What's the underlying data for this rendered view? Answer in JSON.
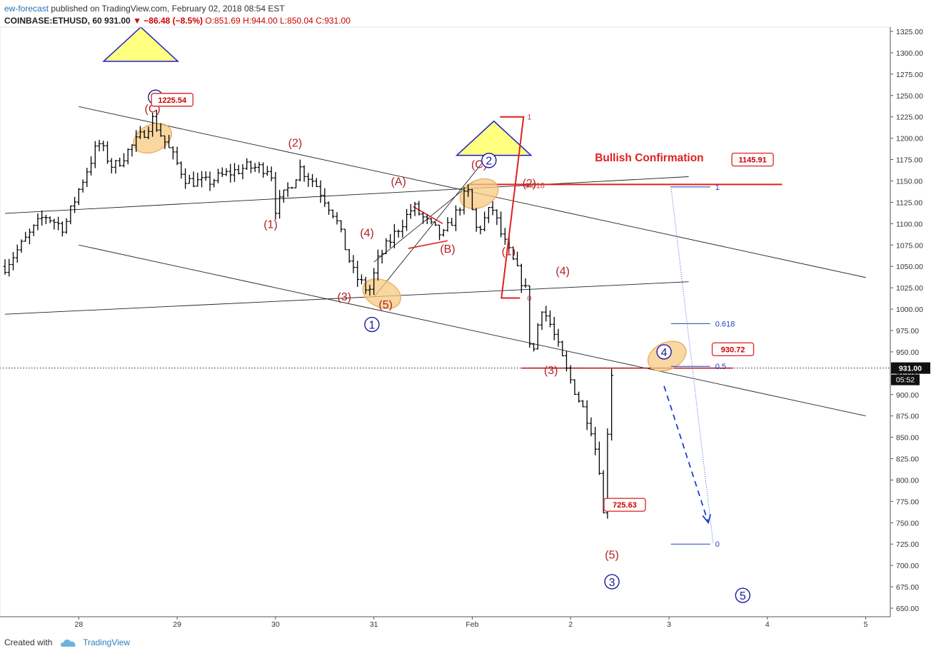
{
  "header": {
    "user": "ew-forecast",
    "published": "published on TradingView.com, February 02, 2018 08:54 EST",
    "symbol": "COINBASE:ETHUSD, 60",
    "last": "931.00",
    "change": "▼ −86.48 (−8.5%)",
    "o_label": "O:",
    "o": "851.69",
    "h_label": "H:",
    "h": "944.00",
    "l_label": "L:",
    "l": "850.04",
    "c_label": "C:",
    "c": "931.00"
  },
  "footer": {
    "created_with": "Created with",
    "brand": "TradingView"
  },
  "colors": {
    "wave_red": "#b22222",
    "wave_blue": "#1a1aa0",
    "fib_blue": "#1f3fbf",
    "ellipse_fill": "#f6c982",
    "ellipse_stroke": "#e8a85a",
    "triangle_fill": "#ffff80",
    "triangle_stroke": "#1a1ad0",
    "line_red": "#e02020"
  },
  "chart_data": {
    "type": "bar",
    "subtype": "ohlc",
    "ylim": [
      640,
      1330
    ],
    "y_ticks": [
      650,
      675,
      700,
      725,
      750,
      775,
      800,
      825,
      850,
      875,
      900,
      925,
      950,
      975,
      1000,
      1025,
      1050,
      1075,
      1100,
      1125,
      1150,
      1175,
      1200,
      1225,
      1250,
      1275,
      1300,
      1325
    ],
    "x_ticks": [
      {
        "label": "28",
        "t": 28.0
      },
      {
        "label": "29",
        "t": 29.0
      },
      {
        "label": "30",
        "t": 30.0
      },
      {
        "label": "31",
        "t": 31.0
      },
      {
        "label": "Feb",
        "t": 32.0
      },
      {
        "label": "2",
        "t": 33.0
      },
      {
        "label": "3",
        "t": 34.0
      },
      {
        "label": "4",
        "t": 35.0
      },
      {
        "label": "5",
        "t": 36.0
      }
    ],
    "xlim": [
      27.25,
      36.25
    ],
    "price_tag": {
      "value": 931,
      "label": "931.00",
      "countdown": "05:52"
    },
    "keypoints": [
      [
        27.25,
        1050
      ],
      [
        27.45,
        1080
      ],
      [
        27.65,
        1110
      ],
      [
        27.85,
        1095
      ],
      [
        28.0,
        1140
      ],
      [
        28.2,
        1195
      ],
      [
        28.35,
        1165
      ],
      [
        28.5,
        1185
      ],
      [
        28.65,
        1205
      ],
      [
        28.75,
        1222
      ],
      [
        28.95,
        1180
      ],
      [
        29.1,
        1150
      ],
      [
        29.3,
        1148
      ],
      [
        29.5,
        1158
      ],
      [
        29.7,
        1166
      ],
      [
        29.95,
        1165
      ],
      [
        30.0,
        1118
      ],
      [
        30.15,
        1145
      ],
      [
        30.25,
        1165
      ],
      [
        30.4,
        1148
      ],
      [
        30.6,
        1110
      ],
      [
        30.8,
        1040
      ],
      [
        30.95,
        1020
      ],
      [
        31.05,
        1060
      ],
      [
        31.25,
        1095
      ],
      [
        31.4,
        1120
      ],
      [
        31.55,
        1100
      ],
      [
        31.7,
        1085
      ],
      [
        31.85,
        1115
      ],
      [
        31.95,
        1140
      ],
      [
        32.05,
        1090
      ],
      [
        32.2,
        1120
      ],
      [
        32.3,
        1085
      ],
      [
        32.4,
        1060
      ],
      [
        32.55,
        1020
      ],
      [
        32.6,
        935
      ],
      [
        32.7,
        1005
      ],
      [
        32.8,
        980
      ],
      [
        32.95,
        930
      ],
      [
        33.1,
        890
      ],
      [
        33.2,
        865
      ],
      [
        33.3,
        810
      ],
      [
        33.32,
        728
      ],
      [
        33.38,
        870
      ],
      [
        33.42,
        931
      ]
    ],
    "wave_labels_red": [
      {
        "text": "(C)",
        "t": 28.75,
        "p": 1230
      },
      {
        "text": "(1)",
        "t": 29.95,
        "p": 1095
      },
      {
        "text": "(2)",
        "t": 30.2,
        "p": 1190
      },
      {
        "text": "(3)",
        "t": 30.7,
        "p": 1010
      },
      {
        "text": "(4)",
        "t": 30.93,
        "p": 1085
      },
      {
        "text": "(5)",
        "t": 31.12,
        "p": 1001
      },
      {
        "text": "(A)",
        "t": 31.25,
        "p": 1145
      },
      {
        "text": "(B)",
        "t": 31.75,
        "p": 1066
      },
      {
        "text": "(C)",
        "t": 32.07,
        "p": 1165
      },
      {
        "text": "(1)",
        "t": 32.37,
        "p": 1063
      },
      {
        "text": "(2)",
        "t": 32.58,
        "p": 1143
      },
      {
        "text": "(3)",
        "t": 32.8,
        "p": 924
      },
      {
        "text": "(4)",
        "t": 32.92,
        "p": 1040
      },
      {
        "text": "(5)",
        "t": 33.42,
        "p": 708
      }
    ],
    "wave_labels_blue": [
      {
        "text": "Y",
        "t": 28.78,
        "p": 1248
      },
      {
        "text": "1",
        "t": 30.98,
        "p": 982
      },
      {
        "text": "2",
        "t": 32.17,
        "p": 1174
      },
      {
        "text": "3",
        "t": 33.42,
        "p": 681
      },
      {
        "text": "4",
        "t": 33.95,
        "p": 950
      },
      {
        "text": "5",
        "t": 34.75,
        "p": 665
      }
    ],
    "price_labels": [
      {
        "text": "1225.54",
        "t": 28.95,
        "p": 1245
      },
      {
        "text": "1145.91",
        "t": 34.85,
        "p": 1175
      },
      {
        "text": "930.72",
        "t": 34.65,
        "p": 953
      },
      {
        "text": "725.63",
        "t": 33.55,
        "p": 771
      }
    ],
    "annotations": [
      {
        "text": "Bullish Confirmation",
        "t": 33.8,
        "p": 1173
      }
    ],
    "fib_upper": [
      {
        "label": "1",
        "t": 32.5,
        "p": 1225
      },
      {
        "label": "0.618",
        "t": 32.5,
        "p": 1145
      },
      {
        "label": "0",
        "t": 32.5,
        "p": 1013
      }
    ],
    "fib_lower": [
      {
        "label": "1",
        "t": 34.02,
        "p": 1143
      },
      {
        "label": "0.618",
        "t": 34.02,
        "p": 983
      },
      {
        "label": "0.5",
        "t": 34.02,
        "p": 933
      },
      {
        "label": "0",
        "t": 34.02,
        "p": 725
      }
    ]
  }
}
